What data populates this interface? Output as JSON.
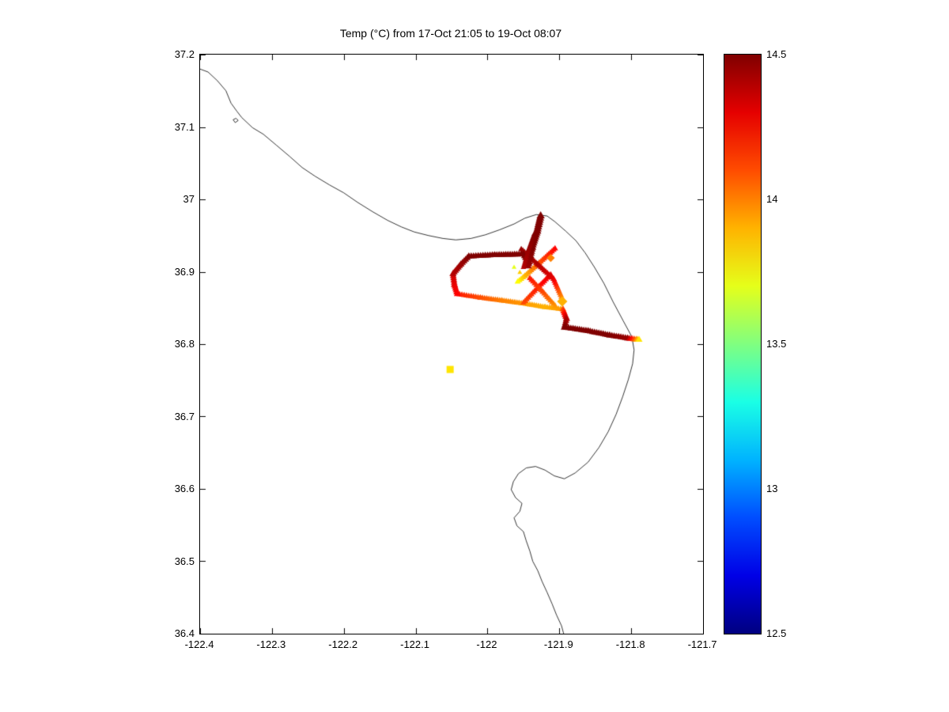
{
  "chart_data": {
    "type": "scatter",
    "title": "Temp (°C) from 17-Oct 21:05 to 19-Oct 08:07",
    "xlabel": "",
    "ylabel": "",
    "x_axis": {
      "range": [
        -122.4,
        -121.7
      ],
      "ticks": [
        -122.4,
        -122.3,
        -122.2,
        -122.1,
        -122.0,
        -121.9,
        -121.8,
        -121.7
      ],
      "tick_labels": [
        "-122.4",
        "-122.3",
        "-122.2",
        "-122.1",
        "-122",
        "-121.9",
        "-121.8",
        "-121.7"
      ]
    },
    "y_axis": {
      "range": [
        36.4,
        37.2
      ],
      "ticks": [
        36.4,
        36.5,
        36.6,
        36.7,
        36.8,
        36.9,
        37.0,
        37.1,
        37.2
      ],
      "tick_labels": [
        "36.4",
        "36.5",
        "36.6",
        "36.7",
        "36.8",
        "36.9",
        "37",
        "37.1",
        "37.2"
      ]
    },
    "colorbar": {
      "colormap": "jet",
      "range": [
        12.5,
        14.5
      ],
      "ticks": [
        12.5,
        13.0,
        13.5,
        14.0,
        14.5
      ],
      "tick_labels": [
        "12.5",
        "13",
        "13.5",
        "14",
        "14.5"
      ]
    },
    "coastline": [
      [
        -122.4,
        37.18
      ],
      [
        -122.389,
        37.176
      ],
      [
        -122.376,
        37.164
      ],
      [
        -122.364,
        37.15
      ],
      [
        -122.357,
        37.133
      ],
      [
        -122.349,
        37.122
      ],
      [
        -122.342,
        37.113
      ],
      [
        -122.327,
        37.099
      ],
      [
        -122.312,
        37.09
      ],
      [
        -122.294,
        37.075
      ],
      [
        -122.275,
        37.059
      ],
      [
        -122.258,
        37.044
      ],
      [
        -122.24,
        37.032
      ],
      [
        -122.22,
        37.02
      ],
      [
        -122.2,
        37.009
      ],
      [
        -122.181,
        36.996
      ],
      [
        -122.16,
        36.983
      ],
      [
        -122.139,
        36.971
      ],
      [
        -122.12,
        36.962
      ],
      [
        -122.102,
        36.955
      ],
      [
        -122.082,
        36.95
      ],
      [
        -122.062,
        36.946
      ],
      [
        -122.044,
        36.944
      ],
      [
        -122.023,
        36.946
      ],
      [
        -122.003,
        36.951
      ],
      [
        -121.983,
        36.958
      ],
      [
        -121.963,
        36.966
      ],
      [
        -121.948,
        36.974
      ],
      [
        -121.932,
        36.979
      ],
      [
        -121.917,
        36.977
      ],
      [
        -121.906,
        36.969
      ],
      [
        -121.891,
        36.956
      ],
      [
        -121.877,
        36.943
      ],
      [
        -121.864,
        36.926
      ],
      [
        -121.851,
        36.906
      ],
      [
        -121.838,
        36.884
      ],
      [
        -121.825,
        36.858
      ],
      [
        -121.811,
        36.832
      ],
      [
        -121.799,
        36.81
      ],
      [
        -121.796,
        36.792
      ],
      [
        -121.798,
        36.773
      ],
      [
        -121.804,
        36.751
      ],
      [
        -121.812,
        36.727
      ],
      [
        -121.821,
        36.703
      ],
      [
        -121.832,
        36.679
      ],
      [
        -121.845,
        36.657
      ],
      [
        -121.86,
        36.637
      ],
      [
        -121.878,
        36.622
      ],
      [
        -121.893,
        36.614
      ],
      [
        -121.907,
        36.618
      ],
      [
        -121.92,
        36.626
      ],
      [
        -121.933,
        36.631
      ],
      [
        -121.946,
        36.629
      ],
      [
        -121.957,
        36.621
      ],
      [
        -121.964,
        36.61
      ],
      [
        -121.967,
        36.599
      ],
      [
        -121.961,
        36.588
      ],
      [
        -121.952,
        36.58
      ],
      [
        -121.955,
        36.569
      ],
      [
        -121.963,
        36.56
      ],
      [
        -121.959,
        36.549
      ],
      [
        -121.95,
        36.541
      ],
      [
        -121.946,
        36.528
      ],
      [
        -121.941,
        36.514
      ],
      [
        -121.937,
        36.5
      ],
      [
        -121.93,
        36.487
      ],
      [
        -121.924,
        36.472
      ],
      [
        -121.917,
        36.457
      ],
      [
        -121.91,
        36.441
      ],
      [
        -121.904,
        36.426
      ],
      [
        -121.897,
        36.411
      ],
      [
        -121.894,
        36.4
      ]
    ],
    "island": [
      [
        -122.354,
        37.11
      ],
      [
        -122.35,
        37.112
      ],
      [
        -122.347,
        37.109
      ],
      [
        -122.351,
        37.106
      ],
      [
        -122.354,
        37.11
      ]
    ],
    "track_segments": [
      {
        "name": "loop-bottom",
        "size": 4.5,
        "points": [
          [
            -122.042,
            36.869,
            14.2
          ],
          [
            -122.01,
            36.864,
            14.1
          ],
          [
            -121.98,
            36.86,
            14.0
          ],
          [
            -121.95,
            36.856,
            13.95
          ],
          [
            -121.92,
            36.851,
            13.9
          ],
          [
            -121.895,
            36.848,
            13.95
          ]
        ]
      },
      {
        "name": "cluster-diag-sw",
        "size": 4.5,
        "points": [
          [
            -121.906,
            36.932,
            14.25
          ],
          [
            -121.928,
            36.912,
            14.1
          ],
          [
            -121.948,
            36.894,
            13.9
          ],
          [
            -121.958,
            36.886,
            13.75
          ]
        ]
      },
      {
        "name": "inner-diag-ne",
        "size": 4.5,
        "points": [
          [
            -121.95,
            36.857,
            14.1
          ],
          [
            -121.93,
            36.878,
            14.2
          ],
          [
            -121.912,
            36.896,
            14.3
          ]
        ]
      },
      {
        "name": "inner-diag-nw",
        "size": 4.5,
        "points": [
          [
            -121.906,
            36.853,
            13.95
          ],
          [
            -121.923,
            36.872,
            14.1
          ],
          [
            -121.941,
            36.891,
            14.2
          ]
        ]
      },
      {
        "name": "cluster-diag-se",
        "size": 4.5,
        "points": [
          [
            -121.953,
            36.931,
            14.45
          ],
          [
            -121.93,
            36.91,
            14.4
          ],
          [
            -121.908,
            36.89,
            14.3
          ],
          [
            -121.897,
            36.865,
            14.0
          ]
        ]
      },
      {
        "name": "loop-west-side",
        "size": 5,
        "points": [
          [
            -122.048,
            36.897,
            14.35
          ],
          [
            -122.046,
            36.882,
            14.3
          ],
          [
            -122.042,
            36.869,
            14.25
          ]
        ]
      },
      {
        "name": "east-corner",
        "size": 5,
        "points": [
          [
            -121.895,
            36.848,
            14.1
          ],
          [
            -121.89,
            36.835,
            14.4
          ],
          [
            -121.893,
            36.823,
            14.5
          ]
        ]
      },
      {
        "name": "loop-west-bend",
        "size": 5,
        "points": [
          [
            -122.026,
            36.921,
            14.5
          ],
          [
            -122.037,
            36.91,
            14.45
          ],
          [
            -122.048,
            36.897,
            14.4
          ]
        ]
      },
      {
        "name": "loop-top",
        "size": 5,
        "points": [
          [
            -122.026,
            36.921,
            14.5
          ],
          [
            -121.99,
            36.923,
            14.5
          ],
          [
            -121.95,
            36.924,
            14.5
          ],
          [
            -121.943,
            36.912,
            14.5
          ]
        ]
      },
      {
        "name": "arm-to-coast",
        "size": 5,
        "points": [
          [
            -121.893,
            36.823,
            14.5
          ],
          [
            -121.86,
            36.818,
            14.5
          ],
          [
            -121.83,
            36.812,
            14.5
          ],
          [
            -121.805,
            36.808,
            14.45
          ],
          [
            -121.793,
            36.806,
            14.0
          ],
          [
            -121.789,
            36.806,
            13.8
          ]
        ]
      },
      {
        "name": "north-spike",
        "size": 6,
        "points": [
          [
            -121.944,
            36.908,
            14.45
          ],
          [
            -121.938,
            36.934,
            14.5
          ],
          [
            -121.931,
            36.956,
            14.5
          ],
          [
            -121.926,
            36.977,
            14.5
          ]
        ]
      },
      {
        "name": "spike-echo",
        "size": 4,
        "points": [
          [
            -121.95,
            36.906,
            14.4
          ],
          [
            -121.943,
            36.93,
            14.45
          ],
          [
            -121.935,
            36.952,
            14.5
          ]
        ]
      }
    ],
    "isolated_points": [
      {
        "lon": -122.052,
        "lat": 36.765,
        "temp": 13.8,
        "size": 4.5,
        "marker": "square"
      },
      {
        "lon": -121.896,
        "lat": 36.859,
        "temp": 13.9,
        "size": 5,
        "marker": "diamond"
      },
      {
        "lon": -121.963,
        "lat": 36.906,
        "temp": 13.7,
        "size": 3.5,
        "marker": "triangle"
      },
      {
        "lon": -121.955,
        "lat": 36.899,
        "temp": 13.85,
        "size": 3.5,
        "marker": "triangle"
      },
      {
        "lon": -121.912,
        "lat": 36.919,
        "temp": 14.0,
        "size": 4,
        "marker": "diamond"
      }
    ]
  }
}
